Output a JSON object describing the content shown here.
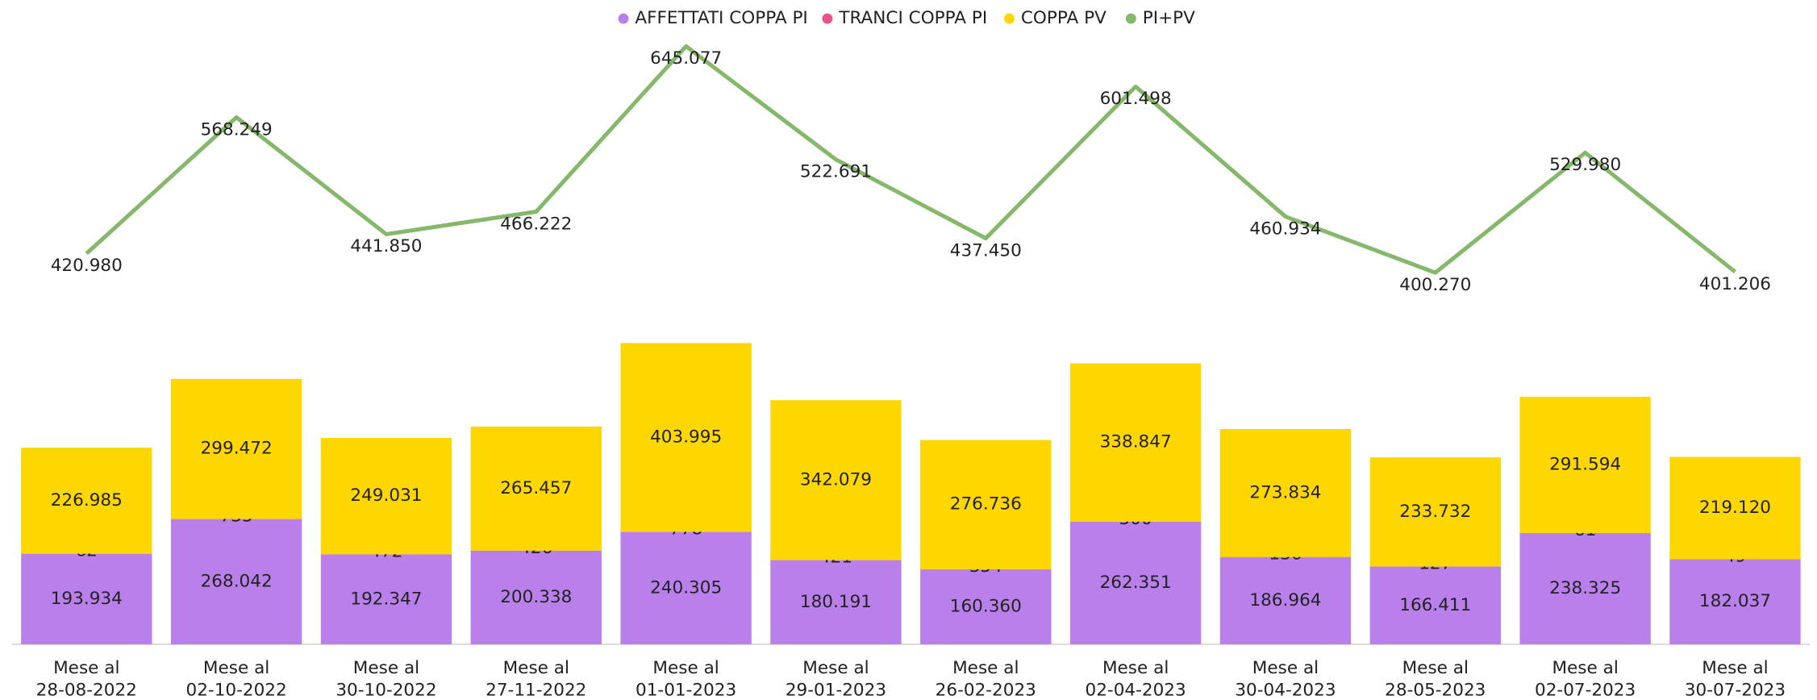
{
  "chart_data": {
    "type": "bar",
    "categories": [
      "Mese al\n28-08-2022",
      "Mese al\n02-10-2022",
      "Mese al\n30-10-2022",
      "Mese al\n27-11-2022",
      "Mese al\n01-01-2023",
      "Mese al\n29-01-2023",
      "Mese al\n26-02-2023",
      "Mese al\n02-04-2023",
      "Mese al\n30-04-2023",
      "Mese al\n28-05-2023",
      "Mese al\n02-07-2023",
      "Mese al\n30-07-2023"
    ],
    "ylim": [
      0,
      650000
    ],
    "y2lim": [
      150000,
      660000
    ],
    "series": [
      {
        "name": "AFFETTATI COPPA PI",
        "color": "#b980ec",
        "stack": true,
        "values": [
          193934,
          268042,
          192347,
          200338,
          240305,
          180191,
          160360,
          262351,
          186964,
          166411,
          238325,
          182037
        ],
        "value_labels": [
          "193.934",
          "268.042",
          "192.347",
          "200.338",
          "240.305",
          "180.191",
          "160.360",
          "262.351",
          "186.964",
          "166.411",
          "238.325",
          "182.037"
        ]
      },
      {
        "name": "TRANCI COPPA PI",
        "color": "#e8528a",
        "stack": true,
        "values": [
          62,
          735,
          472,
          426,
          778,
          421,
          354,
          300,
          136,
          127,
          61,
          49
        ]
      },
      {
        "name": "COPPA PV",
        "color": "#ffd700",
        "stack": true,
        "values": [
          226985,
          299472,
          249031,
          265457,
          403995,
          342079,
          276736,
          338847,
          273834,
          233732,
          291594,
          219120
        ],
        "value_labels": [
          "226.985",
          "299.472",
          "249.031",
          "265.457",
          "403.995",
          "342.079",
          "276.736",
          "338.847",
          "273.834",
          "233.732",
          "291.594",
          "219.120"
        ]
      },
      {
        "name": "PI+PV",
        "color": "#85b86a",
        "type": "line",
        "axis": "y2",
        "values": [
          420980,
          568249,
          441850,
          466222,
          645077,
          522691,
          437450,
          601498,
          460934,
          400270,
          529980,
          401206
        ],
        "value_labels": [
          "420.980",
          "568.249",
          "441.850",
          "466.222",
          "645.077",
          "522.691",
          "437.450",
          "601.498",
          "460.934",
          "400.270",
          "529.980",
          "401.206"
        ]
      }
    ]
  }
}
